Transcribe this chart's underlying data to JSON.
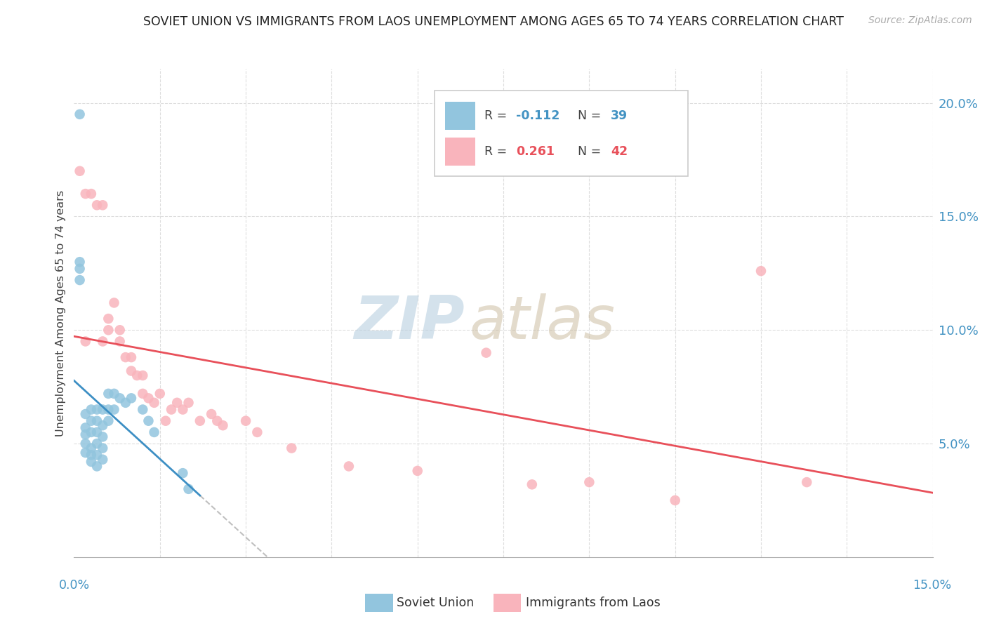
{
  "title": "SOVIET UNION VS IMMIGRANTS FROM LAOS UNEMPLOYMENT AMONG AGES 65 TO 74 YEARS CORRELATION CHART",
  "source": "Source: ZipAtlas.com",
  "ylabel": "Unemployment Among Ages 65 to 74 years",
  "ytick_labels": [
    "5.0%",
    "10.0%",
    "15.0%",
    "20.0%"
  ],
  "ytick_vals": [
    0.05,
    0.1,
    0.15,
    0.2
  ],
  "xlim": [
    0.0,
    0.15
  ],
  "ylim": [
    0.0,
    0.215
  ],
  "legend_label_blue": "Soviet Union",
  "legend_label_pink": "Immigrants from Laos",
  "blue_scatter_color": "#92c5de",
  "pink_scatter_color": "#f9b4bc",
  "blue_line_color": "#3d8fc4",
  "pink_line_color": "#e8505a",
  "dashed_line_color": "#c0c0c0",
  "blue_x": [
    0.001,
    0.001,
    0.001,
    0.001,
    0.002,
    0.002,
    0.002,
    0.002,
    0.002,
    0.003,
    0.003,
    0.003,
    0.003,
    0.003,
    0.003,
    0.004,
    0.004,
    0.004,
    0.004,
    0.004,
    0.004,
    0.005,
    0.005,
    0.005,
    0.005,
    0.005,
    0.006,
    0.006,
    0.006,
    0.007,
    0.007,
    0.008,
    0.009,
    0.01,
    0.012,
    0.013,
    0.014,
    0.019,
    0.02
  ],
  "blue_y": [
    0.195,
    0.13,
    0.127,
    0.122,
    0.063,
    0.057,
    0.054,
    0.05,
    0.046,
    0.065,
    0.06,
    0.055,
    0.048,
    0.045,
    0.042,
    0.065,
    0.06,
    0.055,
    0.05,
    0.045,
    0.04,
    0.065,
    0.058,
    0.053,
    0.048,
    0.043,
    0.072,
    0.065,
    0.06,
    0.072,
    0.065,
    0.07,
    0.068,
    0.07,
    0.065,
    0.06,
    0.055,
    0.037,
    0.03
  ],
  "pink_x": [
    0.001,
    0.002,
    0.002,
    0.003,
    0.004,
    0.005,
    0.005,
    0.006,
    0.006,
    0.007,
    0.008,
    0.008,
    0.009,
    0.01,
    0.01,
    0.011,
    0.012,
    0.012,
    0.013,
    0.014,
    0.015,
    0.016,
    0.017,
    0.018,
    0.019,
    0.02,
    0.022,
    0.024,
    0.025,
    0.026,
    0.03,
    0.032,
    0.038,
    0.048,
    0.06,
    0.065,
    0.072,
    0.08,
    0.09,
    0.105,
    0.12,
    0.128
  ],
  "pink_y": [
    0.17,
    0.16,
    0.095,
    0.16,
    0.155,
    0.155,
    0.095,
    0.105,
    0.1,
    0.112,
    0.1,
    0.095,
    0.088,
    0.088,
    0.082,
    0.08,
    0.08,
    0.072,
    0.07,
    0.068,
    0.072,
    0.06,
    0.065,
    0.068,
    0.065,
    0.068,
    0.06,
    0.063,
    0.06,
    0.058,
    0.06,
    0.055,
    0.048,
    0.04,
    0.038,
    0.175,
    0.09,
    0.032,
    0.033,
    0.025,
    0.126,
    0.033
  ]
}
